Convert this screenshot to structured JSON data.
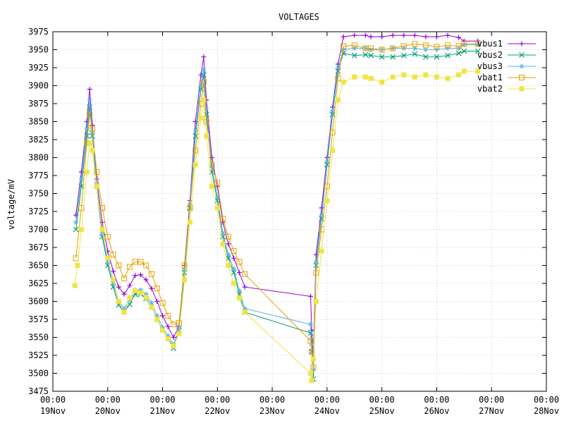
{
  "chart_data": {
    "type": "line",
    "title": "VOLTAGES",
    "xlabel": "",
    "ylabel": "voltage/mV",
    "ylim": [
      3475,
      3975
    ],
    "yticks": [
      3475,
      3500,
      3525,
      3550,
      3575,
      3600,
      3625,
      3650,
      3675,
      3700,
      3725,
      3750,
      3775,
      3800,
      3825,
      3850,
      3875,
      3900,
      3925,
      3950,
      3975
    ],
    "x_unit": "days",
    "xlim": [
      0,
      9
    ],
    "x_start": "19Nov 00:00",
    "xticks": [
      {
        "time": "00:00",
        "date": "19Nov"
      },
      {
        "time": "00:00",
        "date": "20Nov"
      },
      {
        "time": "00:00",
        "date": "21Nov"
      },
      {
        "time": "00:00",
        "date": "22Nov"
      },
      {
        "time": "00:00",
        "date": "23Nov"
      },
      {
        "time": "00:00",
        "date": "24Nov"
      },
      {
        "time": "00:00",
        "date": "25Nov"
      },
      {
        "time": "00:00",
        "date": "26Nov"
      },
      {
        "time": "00:00",
        "date": "27Nov"
      },
      {
        "time": "00:00",
        "date": "28Nov"
      }
    ],
    "grid": true,
    "legend": "top-right",
    "series": [
      {
        "name": "vbus1",
        "color": "#9400d3",
        "marker": "plus",
        "points": [
          [
            0.42,
            3720
          ],
          [
            0.52,
            3780
          ],
          [
            0.62,
            3850
          ],
          [
            0.67,
            3895
          ],
          [
            0.72,
            3845
          ],
          [
            0.8,
            3770
          ],
          [
            0.9,
            3710
          ],
          [
            1.0,
            3670
          ],
          [
            1.1,
            3642
          ],
          [
            1.2,
            3620
          ],
          [
            1.3,
            3610
          ],
          [
            1.4,
            3622
          ],
          [
            1.5,
            3636
          ],
          [
            1.6,
            3637
          ],
          [
            1.7,
            3630
          ],
          [
            1.8,
            3618
          ],
          [
            1.9,
            3600
          ],
          [
            2.0,
            3580
          ],
          [
            2.1,
            3565
          ],
          [
            2.2,
            3550
          ],
          [
            2.3,
            3565
          ],
          [
            2.4,
            3650
          ],
          [
            2.5,
            3740
          ],
          [
            2.6,
            3850
          ],
          [
            2.7,
            3915
          ],
          [
            2.75,
            3940
          ],
          [
            2.8,
            3880
          ],
          [
            2.9,
            3800
          ],
          [
            3.0,
            3760
          ],
          [
            3.1,
            3710
          ],
          [
            3.2,
            3680
          ],
          [
            3.3,
            3660
          ],
          [
            3.4,
            3640
          ],
          [
            3.5,
            3620
          ],
          [
            4.7,
            3607
          ],
          [
            4.72,
            3560
          ],
          [
            4.75,
            3520
          ],
          [
            4.8,
            3665
          ],
          [
            4.9,
            3730
          ],
          [
            5.0,
            3800
          ],
          [
            5.1,
            3870
          ],
          [
            5.2,
            3930
          ],
          [
            5.3,
            3968
          ],
          [
            5.5,
            3970
          ],
          [
            5.7,
            3970
          ],
          [
            5.8,
            3968
          ],
          [
            6.0,
            3968
          ],
          [
            6.2,
            3970
          ],
          [
            6.4,
            3970
          ],
          [
            6.6,
            3970
          ],
          [
            6.8,
            3968
          ],
          [
            7.0,
            3968
          ],
          [
            7.2,
            3970
          ],
          [
            7.4,
            3967
          ],
          [
            7.5,
            3962
          ],
          [
            7.75,
            3962
          ]
        ]
      },
      {
        "name": "vbus2",
        "color": "#009e73",
        "marker": "x",
        "points": [
          [
            0.42,
            3700
          ],
          [
            0.52,
            3760
          ],
          [
            0.62,
            3830
          ],
          [
            0.67,
            3870
          ],
          [
            0.72,
            3830
          ],
          [
            0.8,
            3760
          ],
          [
            0.9,
            3690
          ],
          [
            1.0,
            3650
          ],
          [
            1.1,
            3620
          ],
          [
            1.2,
            3595
          ],
          [
            1.3,
            3585
          ],
          [
            1.4,
            3596
          ],
          [
            1.5,
            3610
          ],
          [
            1.6,
            3610
          ],
          [
            1.7,
            3604
          ],
          [
            1.8,
            3592
          ],
          [
            1.9,
            3575
          ],
          [
            2.0,
            3560
          ],
          [
            2.1,
            3548
          ],
          [
            2.2,
            3535
          ],
          [
            2.3,
            3560
          ],
          [
            2.4,
            3640
          ],
          [
            2.5,
            3730
          ],
          [
            2.6,
            3830
          ],
          [
            2.7,
            3895
          ],
          [
            2.75,
            3915
          ],
          [
            2.8,
            3860
          ],
          [
            2.9,
            3780
          ],
          [
            3.0,
            3740
          ],
          [
            3.1,
            3690
          ],
          [
            3.2,
            3660
          ],
          [
            3.3,
            3640
          ],
          [
            3.4,
            3610
          ],
          [
            3.5,
            3585
          ],
          [
            4.7,
            3556
          ],
          [
            4.72,
            3530
          ],
          [
            4.75,
            3492
          ],
          [
            4.8,
            3650
          ],
          [
            4.9,
            3715
          ],
          [
            5.0,
            3790
          ],
          [
            5.1,
            3860
          ],
          [
            5.2,
            3920
          ],
          [
            5.3,
            3945
          ],
          [
            5.5,
            3942
          ],
          [
            5.7,
            3943
          ],
          [
            5.8,
            3942
          ],
          [
            6.0,
            3940
          ],
          [
            6.2,
            3940
          ],
          [
            6.4,
            3942
          ],
          [
            6.6,
            3944
          ],
          [
            6.8,
            3940
          ],
          [
            7.0,
            3940
          ],
          [
            7.2,
            3942
          ],
          [
            7.4,
            3945
          ],
          [
            7.5,
            3948
          ],
          [
            7.75,
            3948
          ]
        ]
      },
      {
        "name": "vbus3",
        "color": "#56b4e9",
        "marker": "star",
        "points": [
          [
            0.42,
            3710
          ],
          [
            0.52,
            3770
          ],
          [
            0.62,
            3840
          ],
          [
            0.67,
            3880
          ],
          [
            0.72,
            3835
          ],
          [
            0.8,
            3765
          ],
          [
            0.9,
            3695
          ],
          [
            1.0,
            3655
          ],
          [
            1.1,
            3625
          ],
          [
            1.2,
            3600
          ],
          [
            1.3,
            3590
          ],
          [
            1.4,
            3602
          ],
          [
            1.5,
            3616
          ],
          [
            1.6,
            3616
          ],
          [
            1.7,
            3610
          ],
          [
            1.8,
            3598
          ],
          [
            1.9,
            3580
          ],
          [
            2.0,
            3564
          ],
          [
            2.1,
            3552
          ],
          [
            2.2,
            3540
          ],
          [
            2.3,
            3562
          ],
          [
            2.4,
            3645
          ],
          [
            2.5,
            3735
          ],
          [
            2.6,
            3838
          ],
          [
            2.7,
            3900
          ],
          [
            2.75,
            3922
          ],
          [
            2.8,
            3868
          ],
          [
            2.9,
            3788
          ],
          [
            3.0,
            3745
          ],
          [
            3.1,
            3695
          ],
          [
            3.2,
            3665
          ],
          [
            3.3,
            3645
          ],
          [
            3.4,
            3615
          ],
          [
            3.5,
            3590
          ],
          [
            4.7,
            3568
          ],
          [
            4.72,
            3540
          ],
          [
            4.75,
            3505
          ],
          [
            4.8,
            3655
          ],
          [
            4.9,
            3720
          ],
          [
            5.0,
            3795
          ],
          [
            5.1,
            3865
          ],
          [
            5.2,
            3925
          ],
          [
            5.3,
            3950
          ],
          [
            5.5,
            3952
          ],
          [
            5.7,
            3952
          ],
          [
            5.8,
            3950
          ],
          [
            6.0,
            3950
          ],
          [
            6.2,
            3952
          ],
          [
            6.4,
            3952
          ],
          [
            6.6,
            3952
          ],
          [
            6.8,
            3950
          ],
          [
            7.0,
            3950
          ],
          [
            7.2,
            3952
          ],
          [
            7.4,
            3952
          ],
          [
            7.5,
            3957
          ],
          [
            7.75,
            3957
          ]
        ]
      },
      {
        "name": "vbat1",
        "color": "#e69f00",
        "marker": "square-open",
        "points": [
          [
            0.42,
            3660
          ],
          [
            0.52,
            3730
          ],
          [
            0.62,
            3820
          ],
          [
            0.67,
            3860
          ],
          [
            0.72,
            3840
          ],
          [
            0.8,
            3780
          ],
          [
            0.9,
            3730
          ],
          [
            1.0,
            3690
          ],
          [
            1.1,
            3665
          ],
          [
            1.2,
            3650
          ],
          [
            1.3,
            3632
          ],
          [
            1.4,
            3648
          ],
          [
            1.5,
            3655
          ],
          [
            1.6,
            3655
          ],
          [
            1.7,
            3650
          ],
          [
            1.8,
            3638
          ],
          [
            1.9,
            3618
          ],
          [
            2.0,
            3598
          ],
          [
            2.1,
            3580
          ],
          [
            2.2,
            3568
          ],
          [
            2.3,
            3570
          ],
          [
            2.4,
            3650
          ],
          [
            2.5,
            3730
          ],
          [
            2.6,
            3810
          ],
          [
            2.7,
            3875
          ],
          [
            2.75,
            3905
          ],
          [
            2.8,
            3850
          ],
          [
            2.9,
            3790
          ],
          [
            3.0,
            3765
          ],
          [
            3.1,
            3715
          ],
          [
            3.2,
            3690
          ],
          [
            3.3,
            3670
          ],
          [
            3.4,
            3655
          ],
          [
            3.5,
            3638
          ],
          [
            4.7,
            3545
          ],
          [
            4.72,
            3530
          ],
          [
            4.75,
            3508
          ],
          [
            4.8,
            3640
          ],
          [
            4.9,
            3700
          ],
          [
            5.0,
            3760
          ],
          [
            5.1,
            3835
          ],
          [
            5.2,
            3910
          ],
          [
            5.3,
            3955
          ],
          [
            5.5,
            3956
          ],
          [
            5.7,
            3952
          ],
          [
            5.8,
            3952
          ],
          [
            6.0,
            3950
          ],
          [
            6.2,
            3952
          ],
          [
            6.4,
            3955
          ],
          [
            6.6,
            3958
          ],
          [
            6.8,
            3956
          ],
          [
            7.0,
            3954
          ],
          [
            7.2,
            3956
          ],
          [
            7.4,
            3955
          ],
          [
            7.5,
            3958
          ],
          [
            7.75,
            3958
          ]
        ]
      },
      {
        "name": "vbat2",
        "color": "#f0e442",
        "marker": "square-filled",
        "points": [
          [
            0.4,
            3622
          ],
          [
            0.45,
            3650
          ],
          [
            0.52,
            3700
          ],
          [
            0.62,
            3780
          ],
          [
            0.67,
            3820
          ],
          [
            0.72,
            3810
          ],
          [
            0.8,
            3760
          ],
          [
            0.9,
            3700
          ],
          [
            1.0,
            3660
          ],
          [
            1.1,
            3630
          ],
          [
            1.2,
            3600
          ],
          [
            1.3,
            3585
          ],
          [
            1.4,
            3605
          ],
          [
            1.5,
            3615
          ],
          [
            1.6,
            3612
          ],
          [
            1.7,
            3606
          ],
          [
            1.8,
            3592
          ],
          [
            1.9,
            3575
          ],
          [
            2.0,
            3560
          ],
          [
            2.1,
            3548
          ],
          [
            2.2,
            3538
          ],
          [
            2.3,
            3555
          ],
          [
            2.4,
            3630
          ],
          [
            2.5,
            3710
          ],
          [
            2.6,
            3790
          ],
          [
            2.7,
            3855
          ],
          [
            2.75,
            3880
          ],
          [
            2.8,
            3830
          ],
          [
            2.9,
            3760
          ],
          [
            3.0,
            3730
          ],
          [
            3.1,
            3680
          ],
          [
            3.2,
            3650
          ],
          [
            3.3,
            3625
          ],
          [
            3.4,
            3605
          ],
          [
            3.5,
            3585
          ],
          [
            4.7,
            3500
          ],
          [
            4.72,
            3490
          ],
          [
            4.75,
            3520
          ],
          [
            4.8,
            3600
          ],
          [
            4.9,
            3670
          ],
          [
            5.0,
            3740
          ],
          [
            5.1,
            3810
          ],
          [
            5.2,
            3880
          ],
          [
            5.3,
            3905
          ],
          [
            5.5,
            3912
          ],
          [
            5.7,
            3912
          ],
          [
            5.8,
            3910
          ],
          [
            6.0,
            3905
          ],
          [
            6.2,
            3912
          ],
          [
            6.4,
            3915
          ],
          [
            6.6,
            3912
          ],
          [
            6.8,
            3915
          ],
          [
            7.0,
            3912
          ],
          [
            7.2,
            3910
          ],
          [
            7.4,
            3915
          ],
          [
            7.5,
            3920
          ],
          [
            7.75,
            3920
          ]
        ]
      }
    ]
  }
}
